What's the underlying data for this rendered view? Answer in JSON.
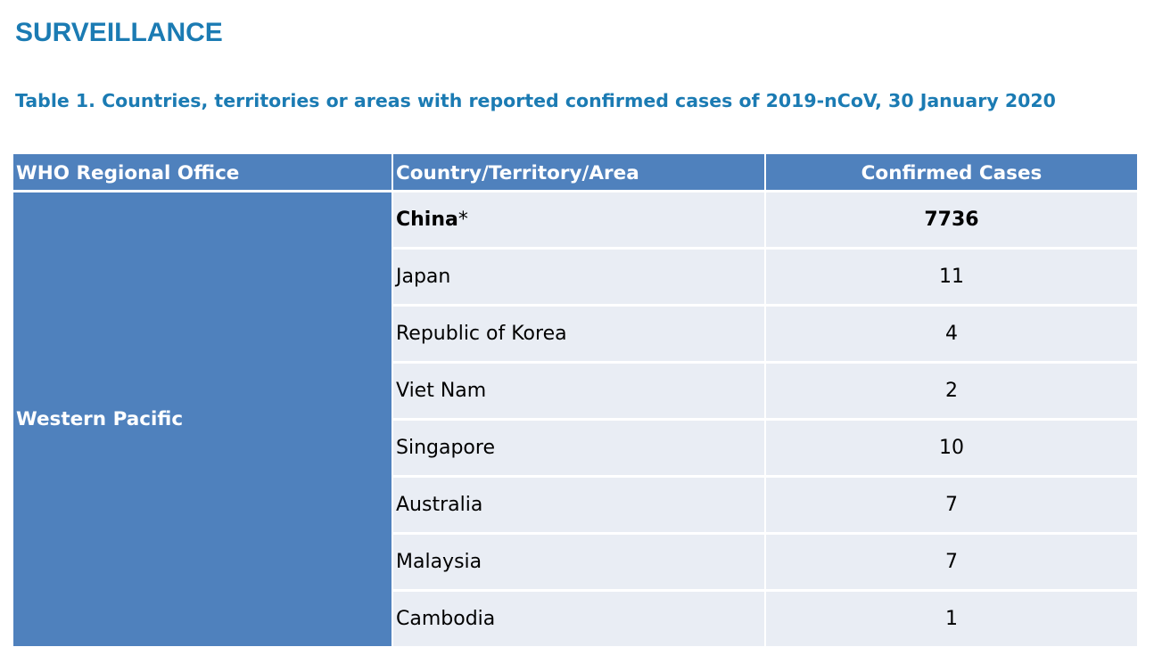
{
  "section_title": "SURVEILLANCE",
  "table_caption": "Table 1. Countries, territories or areas with reported confirmed cases of 2019-nCoV, 30 January 2020",
  "table": {
    "headers": [
      "WHO Regional Office",
      "Country/Territory/Area",
      "Confirmed Cases"
    ],
    "region": "Western Pacific",
    "rows": [
      {
        "country": "China",
        "marker": "*",
        "cases": "7736",
        "bold": true
      },
      {
        "country": "Japan",
        "marker": "",
        "cases": "11",
        "bold": false
      },
      {
        "country": "Republic of Korea",
        "marker": "",
        "cases": "4",
        "bold": false
      },
      {
        "country": "Viet Nam",
        "marker": "",
        "cases": "2",
        "bold": false
      },
      {
        "country": "Singapore",
        "marker": "",
        "cases": "10",
        "bold": false
      },
      {
        "country": "Australia",
        "marker": "",
        "cases": "7",
        "bold": false
      },
      {
        "country": "Malaysia",
        "marker": "",
        "cases": "7",
        "bold": false
      },
      {
        "country": "Cambodia",
        "marker": "",
        "cases": "1",
        "bold": false
      }
    ]
  },
  "colors": {
    "title": "#1b7bb3",
    "header_fill": "#4f81bd",
    "row_fill": "#e9edf4"
  }
}
